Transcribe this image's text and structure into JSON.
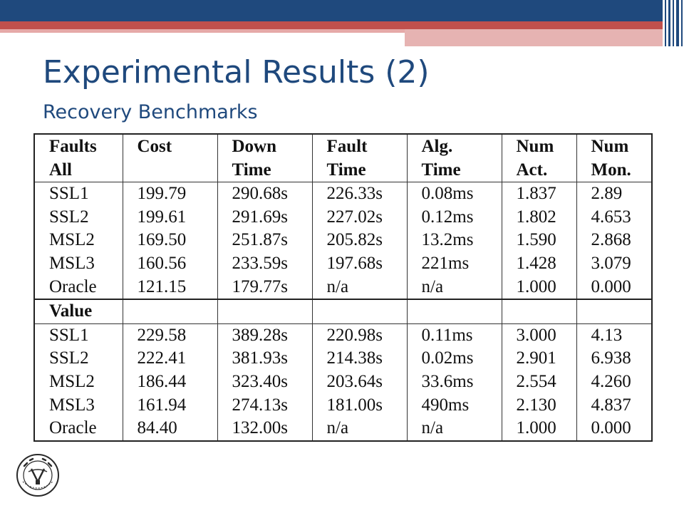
{
  "slide": {
    "title": "Experimental Results (2)",
    "subtitle": "Recovery Benchmarks"
  },
  "table": {
    "headers": [
      [
        "Faults",
        "All"
      ],
      [
        "Cost",
        ""
      ],
      [
        "Down",
        "Time"
      ],
      [
        "Fault",
        "Time"
      ],
      [
        "Alg.",
        "Time"
      ],
      [
        "Num",
        "Act."
      ],
      [
        "Num",
        "Mon."
      ]
    ],
    "faults_rows": [
      [
        "SSL1",
        "199.79",
        "290.68s",
        "226.33s",
        "0.08ms",
        "1.837",
        "2.89"
      ],
      [
        "SSL2",
        "199.61",
        "291.69s",
        "227.02s",
        "0.12ms",
        "1.802",
        "4.653"
      ],
      [
        "MSL2",
        "169.50",
        "251.87s",
        "205.82s",
        "13.2ms",
        "1.590",
        "2.868"
      ],
      [
        "MSL3",
        "160.56",
        "233.59s",
        "197.68s",
        "221ms",
        "1.428",
        "3.079"
      ],
      [
        "Oracle",
        "121.15",
        "179.77s",
        "n/a",
        "n/a",
        "1.000",
        "0.000"
      ]
    ],
    "value_label": "Value",
    "value_rows": [
      [
        "SSL1",
        "229.58",
        "389.28s",
        "220.98s",
        "0.11ms",
        "3.000",
        "4.13"
      ],
      [
        "SSL2",
        "222.41",
        "381.93s",
        "214.38s",
        "0.02ms",
        "2.901",
        "6.938"
      ],
      [
        "MSL2",
        "186.44",
        "323.40s",
        "203.64s",
        "33.6ms",
        "2.554",
        "4.260"
      ],
      [
        "MSL3",
        "161.94",
        "274.13s",
        "181.00s",
        "490ms",
        "2.130",
        "4.837"
      ],
      [
        "Oracle",
        "84.40",
        "132.00s",
        "n/a",
        "n/a",
        "1.000",
        "0.000"
      ]
    ]
  },
  "logo": {
    "icon": "university-seal-icon"
  }
}
